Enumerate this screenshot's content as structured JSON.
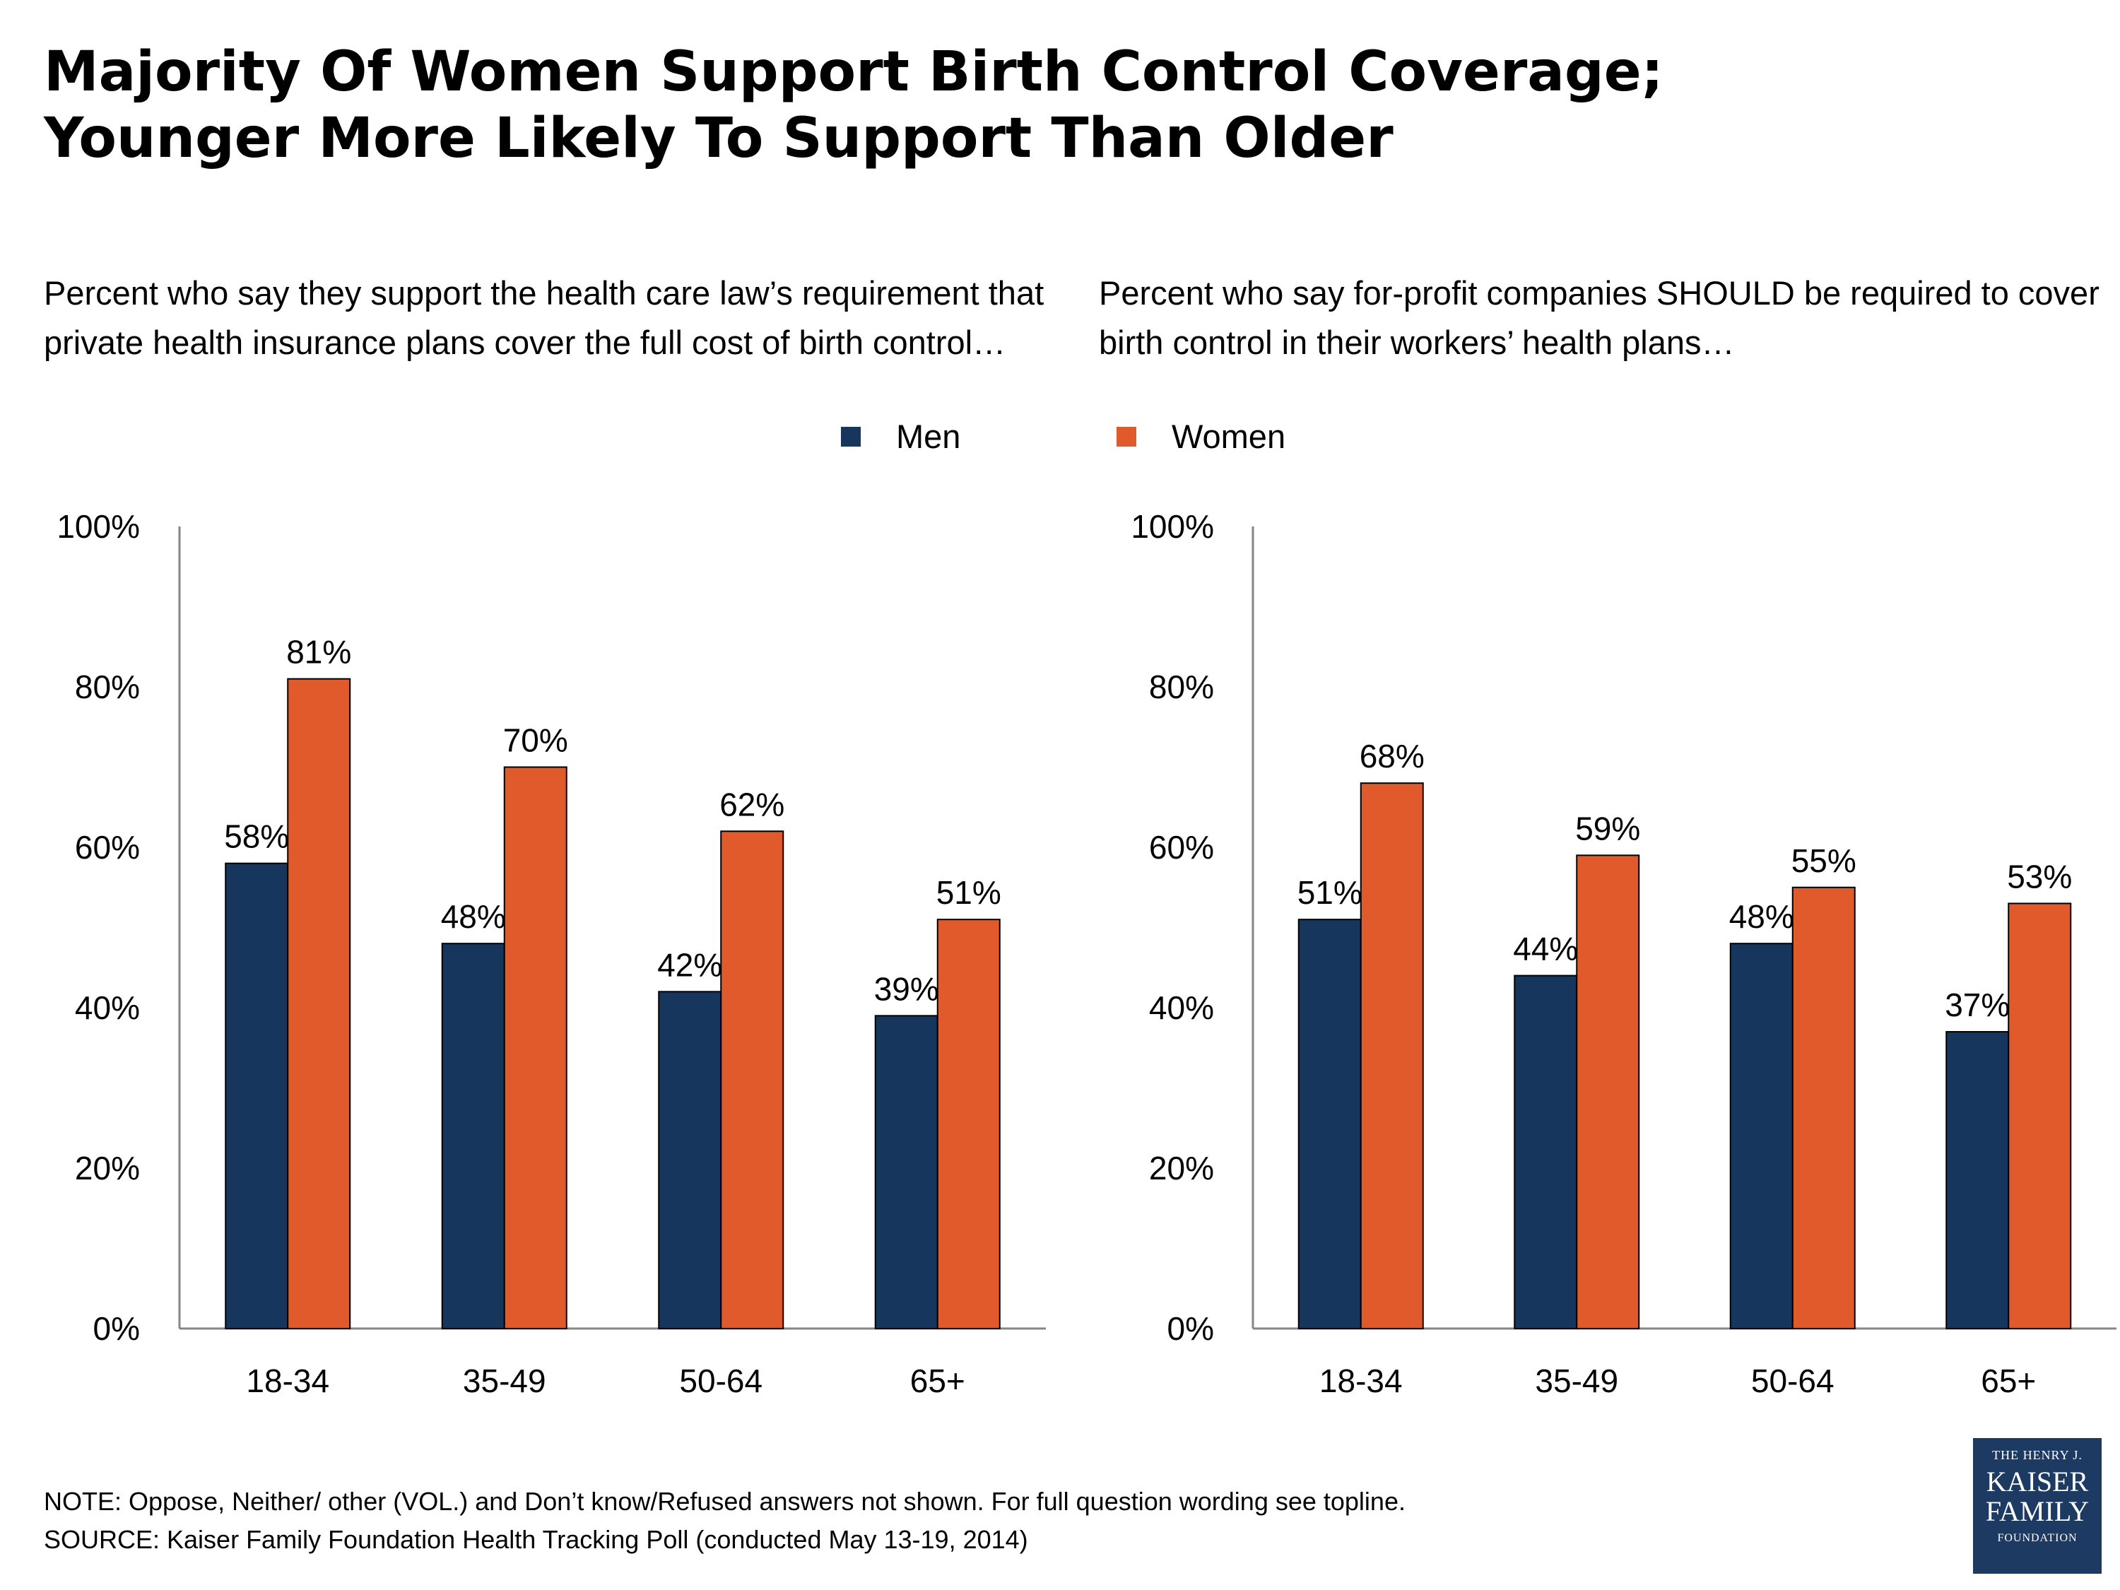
{
  "title": {
    "line1": "Majority Of Women Support Birth Control Coverage;",
    "line2": "Younger More Likely To Support Than Older"
  },
  "legend": {
    "men": "Men",
    "women": "Women"
  },
  "colors": {
    "men": "#17365d",
    "women": "#e05a2b",
    "axis": "#868686"
  },
  "chart_data": [
    {
      "type": "bar",
      "title": "Percent who say they support the health care law’s requirement that private health insurance plans cover the full cost of birth control…",
      "categories": [
        "18-34",
        "35-49",
        "50-64",
        "65+"
      ],
      "series": [
        {
          "name": "Men",
          "values": [
            58,
            48,
            42,
            39
          ]
        },
        {
          "name": "Women",
          "values": [
            81,
            70,
            62,
            51
          ]
        }
      ],
      "ylim": [
        0,
        100
      ],
      "yticks": [
        "0%",
        "20%",
        "40%",
        "60%",
        "80%",
        "100%"
      ],
      "value_format": "percent",
      "grid": false,
      "legend": "top"
    },
    {
      "type": "bar",
      "title": "Percent who say for-profit companies SHOULD be required to cover birth control in their workers’ health plans…",
      "categories": [
        "18-34",
        "35-49",
        "50-64",
        "65+"
      ],
      "series": [
        {
          "name": "Men",
          "values": [
            51,
            44,
            48,
            37
          ]
        },
        {
          "name": "Women",
          "values": [
            68,
            59,
            55,
            53
          ]
        }
      ],
      "ylim": [
        0,
        100
      ],
      "yticks": [
        "0%",
        "20%",
        "40%",
        "60%",
        "80%",
        "100%"
      ],
      "value_format": "percent",
      "grid": false,
      "legend": "top"
    }
  ],
  "footnote": {
    "note": "NOTE: Oppose, Neither/ other (VOL.) and Don’t know/Refused answers not shown. For full question wording see topline.",
    "source": "SOURCE: Kaiser Family Foundation Health Tracking Poll (conducted May 13-19, 2014)"
  },
  "logo": {
    "line1": "THE HENRY J.",
    "line2": "KAISER",
    "line3": "FAMILY",
    "line4": "FOUNDATION"
  }
}
